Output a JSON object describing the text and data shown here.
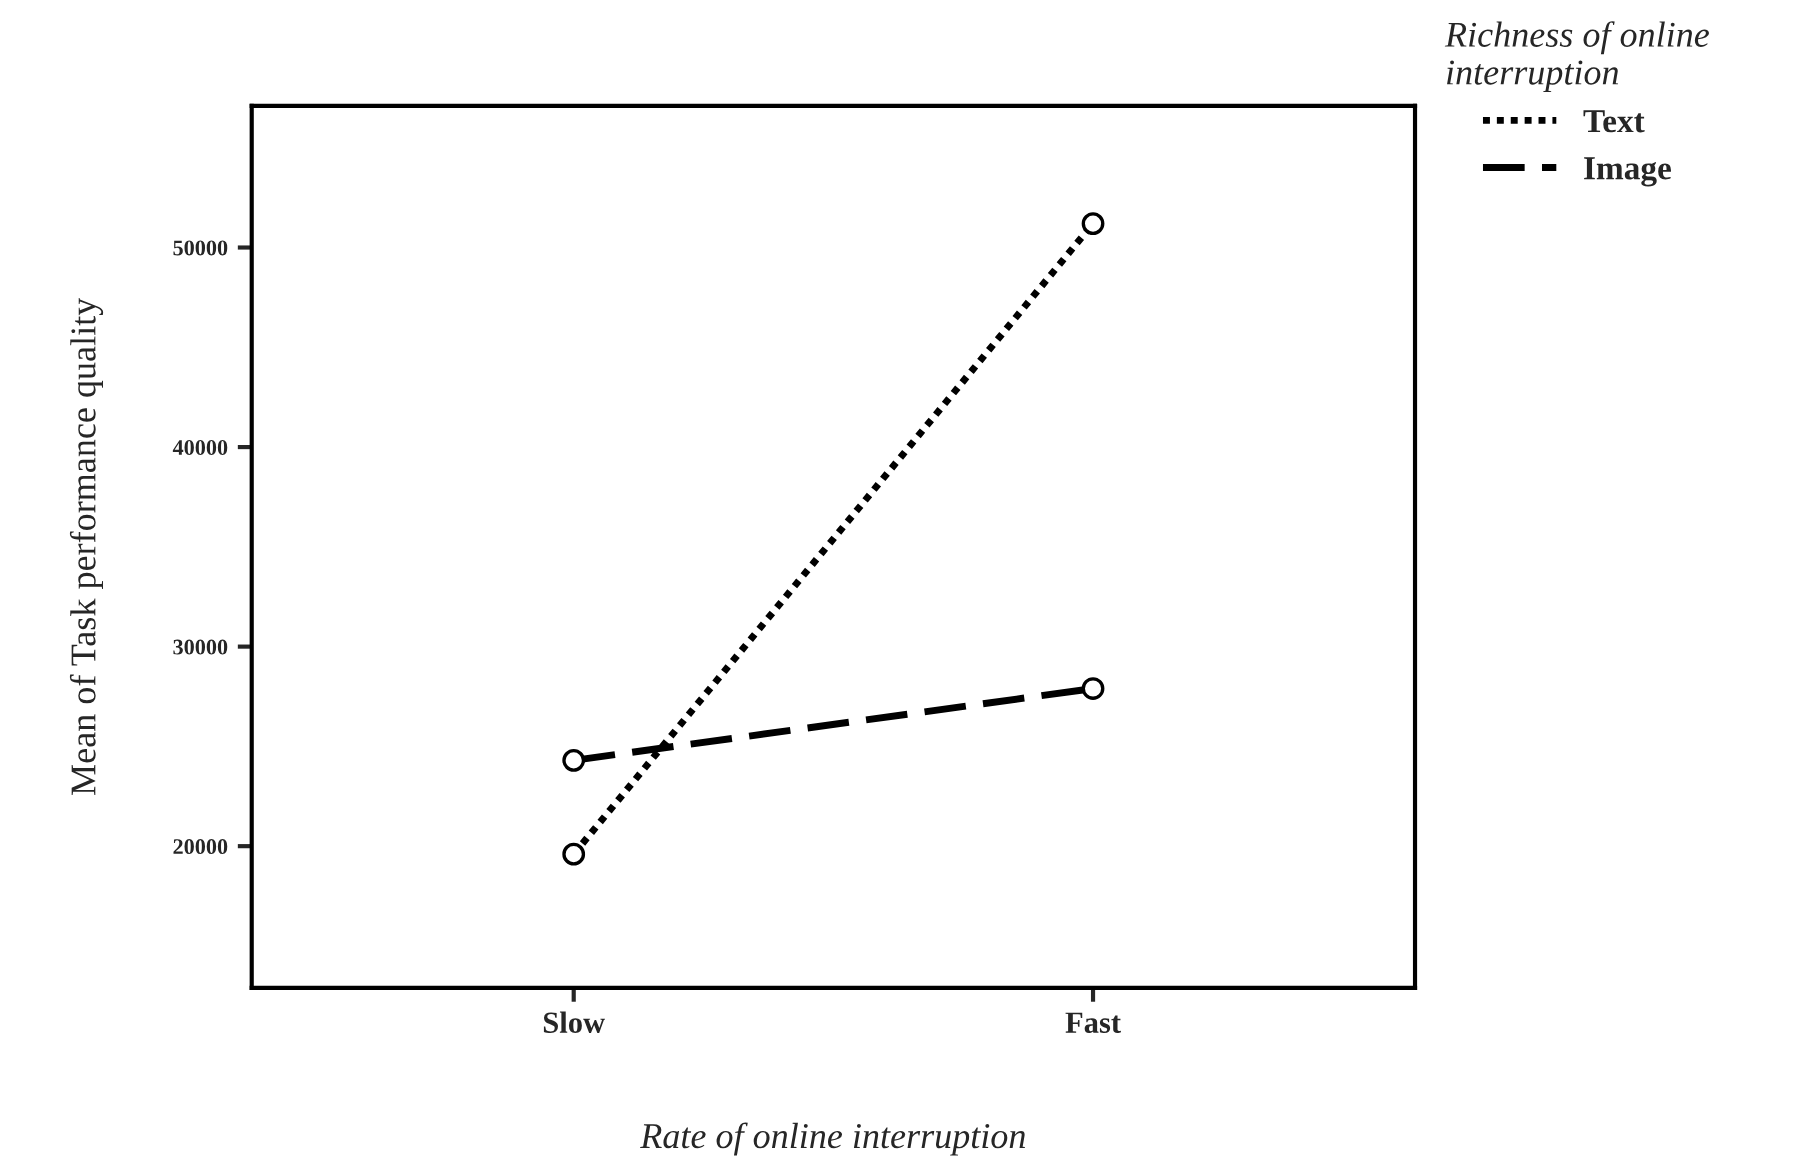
{
  "chart_data": {
    "type": "line",
    "xlabel": "Rate of online interruption",
    "ylabel": "Mean of Task performance quality",
    "legend_title": "Richness of online\ninterruption",
    "categories": [
      "Slow",
      "Fast"
    ],
    "series": [
      {
        "name": "Text",
        "color": "#000000",
        "line_style": "dotted",
        "values": [
          19600,
          51200
        ]
      },
      {
        "name": "Image",
        "color": "#000000",
        "line_style": "dashed",
        "values": [
          24300,
          27900
        ]
      }
    ],
    "ylim": [
      12900,
      57100
    ],
    "yticks": [
      20000,
      30000,
      40000,
      50000
    ],
    "marker": "circle",
    "legend": "top right",
    "grid": false
  }
}
